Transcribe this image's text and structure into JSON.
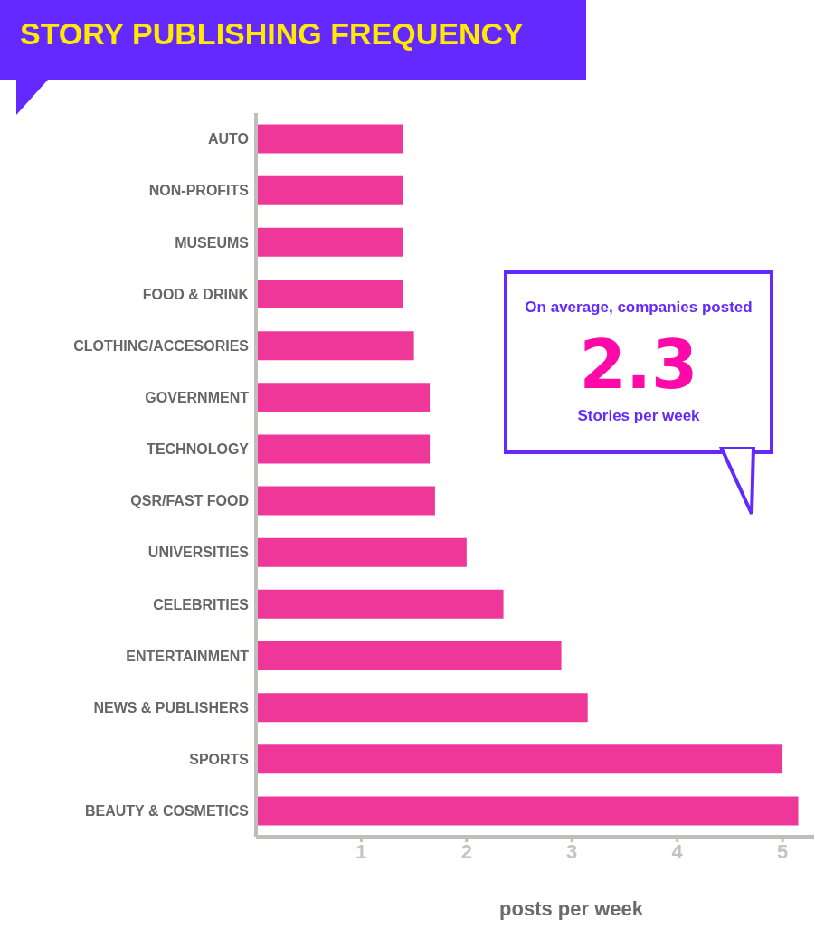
{
  "chart_data": {
    "type": "bar",
    "orientation": "horizontal",
    "title": "STORY PUBLISHING FREQUENCY",
    "xlabel": "posts per week",
    "categories": [
      "AUTO",
      "NON-PROFITS",
      "MUSEUMS",
      "FOOD & DRINK",
      "CLOTHING/ACCESORIES",
      "GOVERNMENT",
      "TECHNOLOGY",
      "QSR/FAST FOOD",
      "UNIVERSITIES",
      "CELEBRITIES",
      "ENTERTAINMENT",
      "NEWS & PUBLISHERS",
      "SPORTS",
      "BEAUTY & COSMETICS"
    ],
    "values": [
      1.4,
      1.4,
      1.4,
      1.4,
      1.5,
      1.65,
      1.65,
      1.7,
      2,
      2.35,
      2.9,
      3.15,
      5,
      5.15
    ],
    "color": "#ef3799",
    "xlim": [
      0,
      5.3
    ],
    "xticks": [
      1,
      2,
      3,
      4,
      5
    ],
    "annotations": [
      "On average, companies posted",
      "2.3",
      "Stories per week"
    ]
  }
}
